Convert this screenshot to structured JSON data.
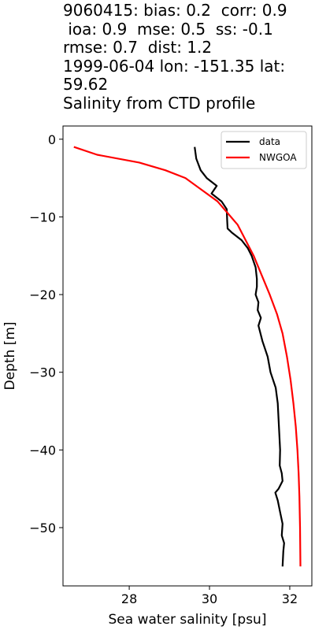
{
  "title_lines": [
    "9060415: bias: 0.2  corr: 0.9",
    " ioa: 0.9  mse: 0.5  ss: -0.1",
    "rmse: 0.7  dist: 1.2",
    "1999-06-04 lon: -151.35 lat:",
    "59.62",
    "Salinity from CTD profile"
  ],
  "chart_data": {
    "type": "line",
    "xlabel": "Sea water salinity [psu]",
    "ylabel": "Depth [m]",
    "xlim": [
      26.35,
      32.55
    ],
    "ylim": [
      -57.5,
      1.7
    ],
    "xticks": [
      28,
      30,
      32
    ],
    "yticks": [
      0,
      -10,
      -20,
      -30,
      -40,
      -50
    ],
    "xtick_labels": [
      "28",
      "30",
      "32"
    ],
    "ytick_labels": [
      "0",
      "−10",
      "−20",
      "−30",
      "−40",
      "−50"
    ],
    "grid": false,
    "legend_position": "top-right",
    "series": [
      {
        "name": "data",
        "color": "#000000",
        "points": [
          [
            29.63,
            -1
          ],
          [
            29.67,
            -2.5
          ],
          [
            29.78,
            -4
          ],
          [
            29.93,
            -5
          ],
          [
            30.18,
            -6
          ],
          [
            30.05,
            -7
          ],
          [
            30.3,
            -8
          ],
          [
            30.43,
            -9
          ],
          [
            30.44,
            -10.5
          ],
          [
            30.45,
            -11.5
          ],
          [
            30.55,
            -12
          ],
          [
            30.8,
            -13
          ],
          [
            30.95,
            -14
          ],
          [
            31.05,
            -15
          ],
          [
            31.15,
            -16.5
          ],
          [
            31.18,
            -18
          ],
          [
            31.18,
            -19
          ],
          [
            31.15,
            -20
          ],
          [
            31.22,
            -21
          ],
          [
            31.2,
            -22
          ],
          [
            31.28,
            -23
          ],
          [
            31.22,
            -24
          ],
          [
            31.32,
            -26
          ],
          [
            31.45,
            -28
          ],
          [
            31.52,
            -30
          ],
          [
            31.65,
            -32
          ],
          [
            31.7,
            -34
          ],
          [
            31.72,
            -36
          ],
          [
            31.74,
            -38
          ],
          [
            31.76,
            -40
          ],
          [
            31.75,
            -42
          ],
          [
            31.8,
            -43
          ],
          [
            31.82,
            -44
          ],
          [
            31.72,
            -45
          ],
          [
            31.64,
            -45.5
          ],
          [
            31.7,
            -46.5
          ],
          [
            31.76,
            -48
          ],
          [
            31.82,
            -49.5
          ],
          [
            31.8,
            -51
          ],
          [
            31.86,
            -52
          ],
          [
            31.84,
            -53
          ],
          [
            31.83,
            -54
          ],
          [
            31.82,
            -55
          ]
        ]
      },
      {
        "name": "NWGOA",
        "color": "#ff0000",
        "points": [
          [
            26.62,
            -1
          ],
          [
            27.2,
            -2
          ],
          [
            28.25,
            -3
          ],
          [
            28.9,
            -4
          ],
          [
            29.4,
            -5
          ],
          [
            29.8,
            -6.5
          ],
          [
            30.2,
            -8
          ],
          [
            30.45,
            -9.5
          ],
          [
            30.7,
            -11
          ],
          [
            30.9,
            -13
          ],
          [
            31.1,
            -15
          ],
          [
            31.3,
            -17.5
          ],
          [
            31.5,
            -20
          ],
          [
            31.68,
            -22.5
          ],
          [
            31.82,
            -25
          ],
          [
            31.93,
            -28
          ],
          [
            32.02,
            -31
          ],
          [
            32.09,
            -34
          ],
          [
            32.15,
            -37
          ],
          [
            32.19,
            -40
          ],
          [
            32.22,
            -43
          ],
          [
            32.24,
            -46
          ],
          [
            32.255,
            -50
          ],
          [
            32.265,
            -55
          ]
        ]
      }
    ]
  }
}
